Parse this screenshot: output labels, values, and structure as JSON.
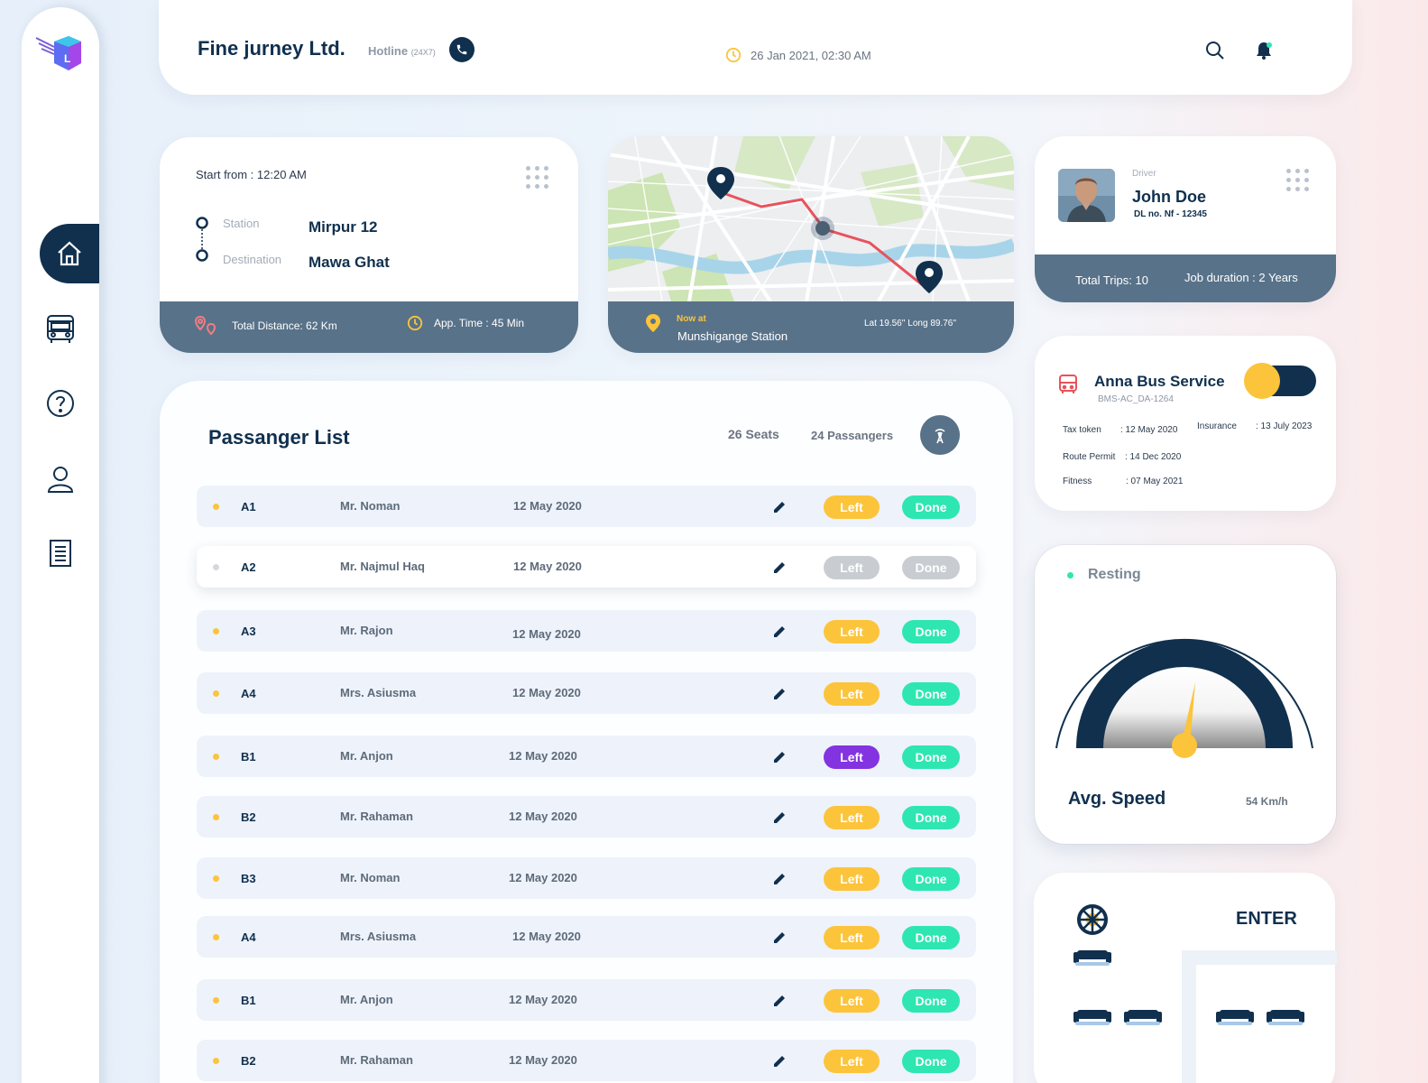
{
  "header": {
    "company": "Fine jurney Ltd.",
    "hotline_label": "Hotline",
    "hotline_note": "(24X7)",
    "datetime": "26 Jan 2021,  02:30 AM"
  },
  "route": {
    "start": "Start from : 12:20 AM",
    "station_label": "Station",
    "station_value": "Mirpur 12",
    "destination_label": "Destination",
    "destination_value": "Mawa Ghat",
    "distance": "Total Distance:  62 Km",
    "app_time": "App. Time : 45 Min"
  },
  "map": {
    "now_at_label": "Now at",
    "station": "Munshigange Station",
    "coords": "Lat 19.56'' Long 89.76''"
  },
  "driver": {
    "role": "Driver",
    "name": "John Doe",
    "dl": "DL no. Nf - 12345",
    "trips": "Total Trips: 10",
    "duration": "Job duration : 2 Years"
  },
  "bus": {
    "name": "Anna Bus Service",
    "id": "BMS-AC_DA-1264",
    "tax_label": "Tax token",
    "tax_value": ": 12 May 2020",
    "insurance_label": "Insurance",
    "insurance_value": ": 13 July 2023",
    "route_label": "Route Permit",
    "route_value": ": 14 Dec 2020",
    "fitness_label": "Fitness",
    "fitness_value": ": 07 May 2021",
    "toggle_on": true
  },
  "speed": {
    "status": "Resting",
    "label": "Avg. Speed",
    "value": "54 Km/h"
  },
  "seats": {
    "enter_label": "ENTER"
  },
  "passengers": {
    "title": "Passanger List",
    "seats_count": "26 Seats",
    "passenger_count": "24 Passangers",
    "left_label": "Left",
    "done_label": "Done",
    "rows": [
      {
        "seat": "A1",
        "name": "Mr. Noman",
        "date": "12 May 2020"
      },
      {
        "seat": "A2",
        "name": "Mr. Najmul Haq",
        "date": "12 May 2020"
      },
      {
        "seat": "A3",
        "name": "Mr. Rajon",
        "date": "12 May 2020"
      },
      {
        "seat": "A4",
        "name": "Mrs. Asiusma",
        "date": "12 May 2020"
      },
      {
        "seat": "B1",
        "name": "Mr. Anjon",
        "date": "12 May 2020"
      },
      {
        "seat": "B2",
        "name": "Mr. Rahaman",
        "date": "12 May 2020"
      },
      {
        "seat": "B3",
        "name": "Mr. Noman",
        "date": "12 May 2020"
      },
      {
        "seat": "A4",
        "name": "Mrs. Asiusma",
        "date": "12 May 2020"
      },
      {
        "seat": "B1",
        "name": "Mr. Anjon",
        "date": "12 May 2020"
      },
      {
        "seat": "B2",
        "name": "Mr. Rahaman",
        "date": "12 May 2020"
      }
    ]
  },
  "colors": {
    "navy": "#10304e",
    "slate": "#587289",
    "yellow": "#fcc43b",
    "green": "#2ee6b2",
    "purple": "#8333e0"
  }
}
